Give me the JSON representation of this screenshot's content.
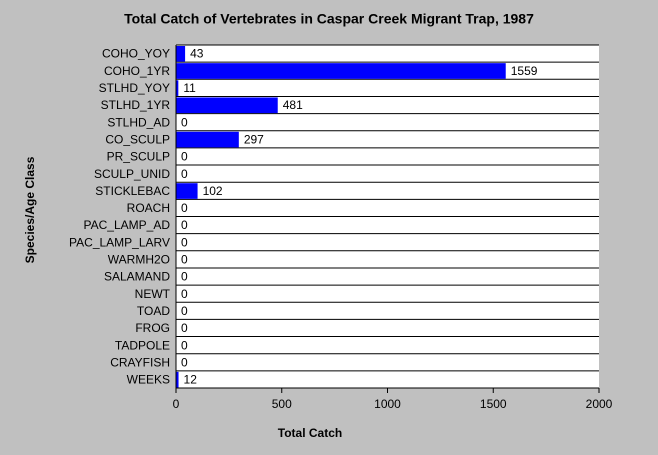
{
  "chart_data": {
    "type": "hbar",
    "title": "Total Catch of Vertebrates in Caspar Creek Migrant Trap, 1987",
    "x_label": "Total Catch",
    "y_label": "Species/Age Class",
    "categories": [
      "COHO_YOY",
      "COHO_1YR",
      "STLHD_YOY",
      "STLHD_1YR",
      "STLHD_AD",
      "CO_SCULP",
      "PR_SCULP",
      "SCULP_UNID",
      "STICKLEBAC",
      "ROACH",
      "PAC_LAMP_AD",
      "PAC_LAMP_LARV",
      "WARMH2O",
      "SALAMAND",
      "NEWT",
      "TOAD",
      "FROG",
      "TADPOLE",
      "CRAYFISH",
      "WEEKS"
    ],
    "values": [
      43,
      1559,
      11,
      481,
      0,
      297,
      0,
      0,
      102,
      0,
      0,
      0,
      0,
      0,
      0,
      0,
      0,
      0,
      0,
      12
    ],
    "color": "#0000ff",
    "xlim": [
      0,
      2000
    ],
    "xticks": [
      0,
      500,
      1000,
      1500,
      2000
    ]
  }
}
